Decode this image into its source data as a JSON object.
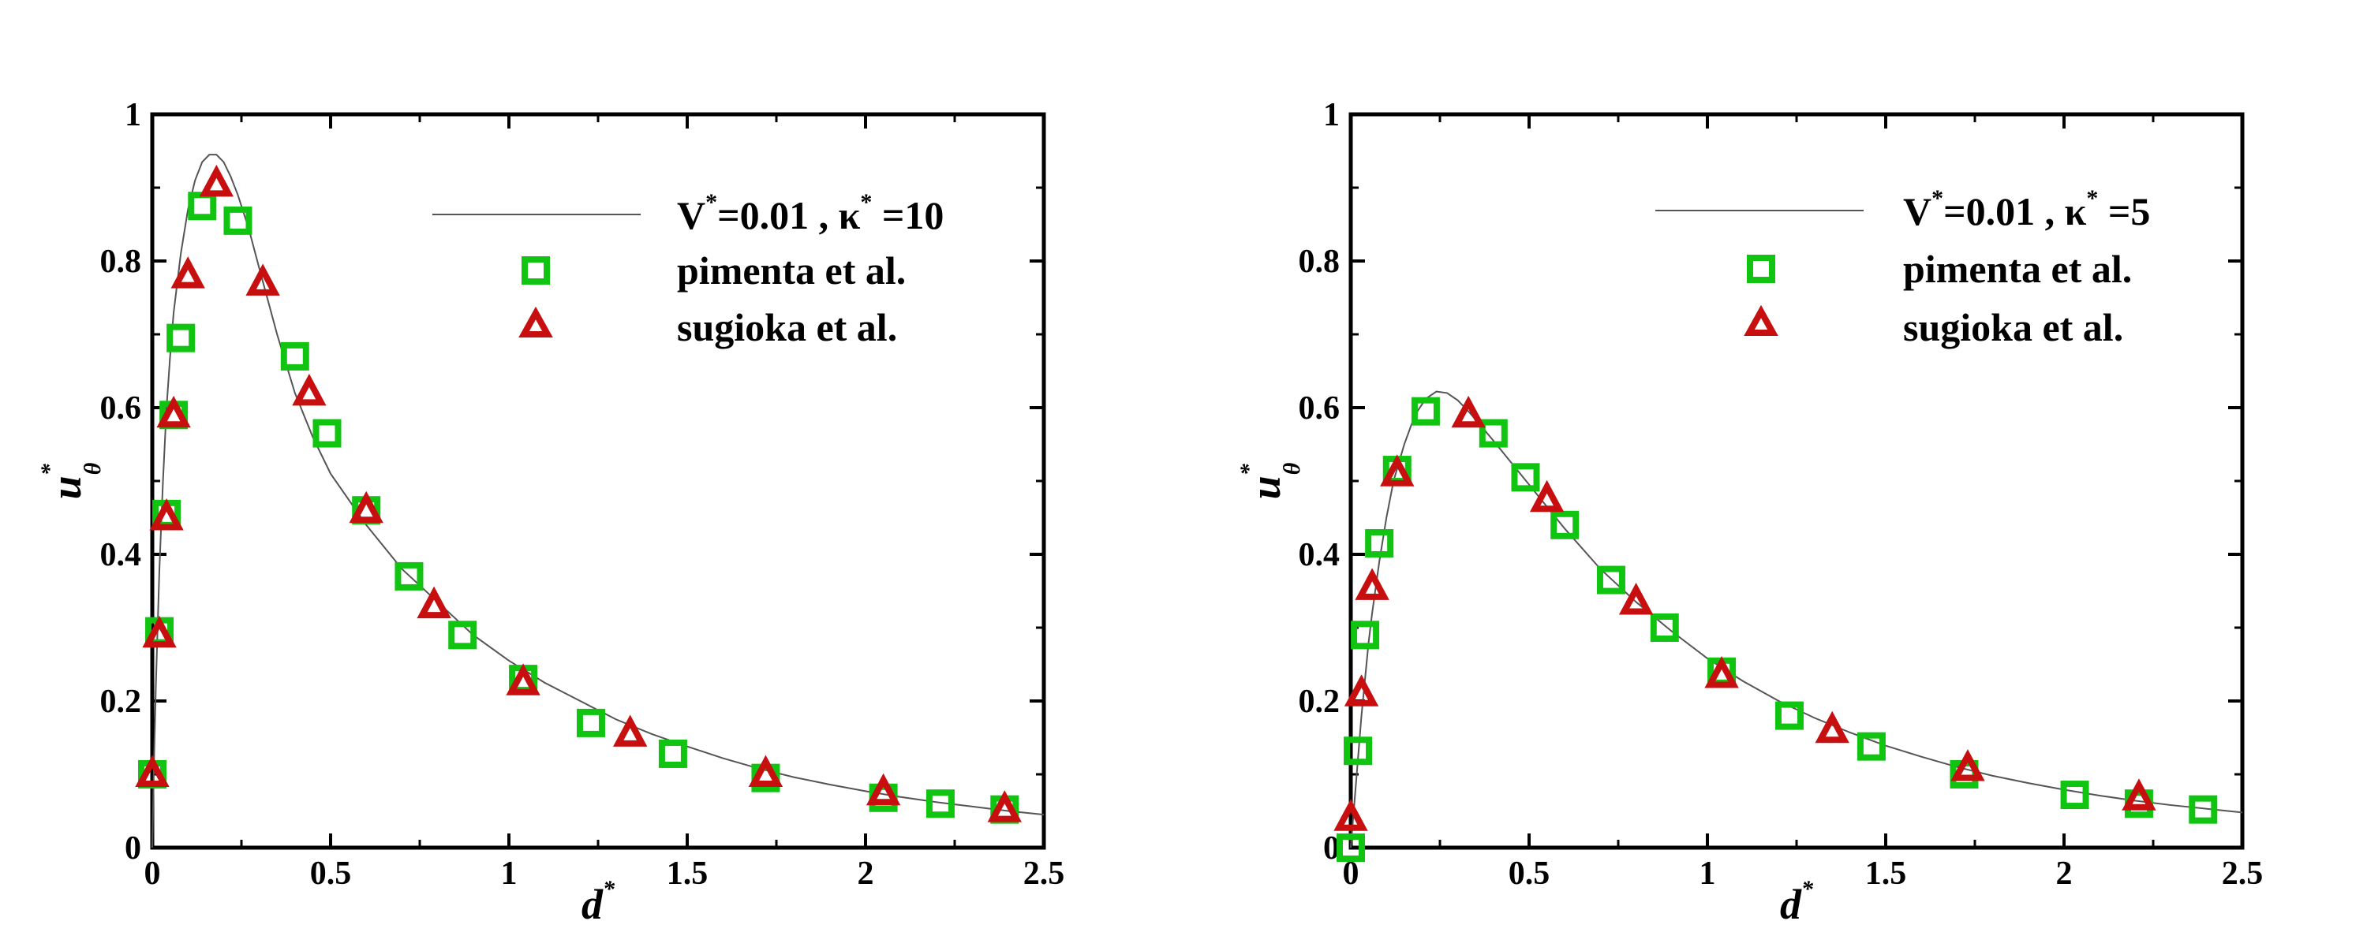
{
  "chart_data": [
    {
      "type": "scatter",
      "xlabel": "d",
      "xlabel_sup": "*",
      "ylabel": "u",
      "ylabel_sup": "*",
      "ylabel_sub": "θ",
      "xlim": [
        0,
        2.5
      ],
      "ylim": [
        0,
        1
      ],
      "xticks": [
        "0",
        "0.5",
        "1",
        "1.5",
        "2",
        "2.5"
      ],
      "yticks": [
        "0",
        "0.2",
        "0.4",
        "0.6",
        "0.8",
        "1"
      ],
      "grid": false,
      "legend_position": "top-right",
      "legend": {
        "line_label": {
          "v": "V",
          "sup1": "*",
          "mid": "=0.01 , κ",
          "sup2": "*",
          "end": " =10"
        },
        "squares_label": "pimenta et al.",
        "triangles_label": "sugioka et al."
      },
      "colors": {
        "squares": "#11c411",
        "triangles": "#c80f0f",
        "line": "#555555"
      },
      "series": [
        {
          "kind": "line",
          "x": [
            0,
            0.005,
            0.01,
            0.02,
            0.03,
            0.04,
            0.05,
            0.06,
            0.08,
            0.1,
            0.12,
            0.14,
            0.16,
            0.18,
            0.2,
            0.22,
            0.24,
            0.27,
            0.3,
            0.35,
            0.4,
            0.45,
            0.5,
            0.6,
            0.7,
            0.8,
            0.9,
            1.0,
            1.1,
            1.2,
            1.3,
            1.4,
            1.5,
            1.6,
            1.7,
            1.8,
            1.9,
            2.0,
            2.1,
            2.2,
            2.3,
            2.4,
            2.5
          ],
          "y": [
            0,
            0.12,
            0.22,
            0.38,
            0.5,
            0.6,
            0.67,
            0.73,
            0.81,
            0.87,
            0.91,
            0.935,
            0.945,
            0.945,
            0.935,
            0.915,
            0.89,
            0.845,
            0.79,
            0.7,
            0.62,
            0.56,
            0.51,
            0.44,
            0.38,
            0.335,
            0.29,
            0.255,
            0.225,
            0.2,
            0.175,
            0.155,
            0.138,
            0.122,
            0.108,
            0.096,
            0.086,
            0.077,
            0.069,
            0.062,
            0.056,
            0.05,
            0.045
          ]
        },
        {
          "kind": "squares",
          "x": [
            0,
            0.02,
            0.04,
            0.06,
            0.08,
            0.14,
            0.24,
            0.4,
            0.49,
            0.6,
            0.72,
            0.87,
            1.04,
            1.23,
            1.46,
            1.72,
            2.05,
            2.21,
            2.39
          ],
          "y": [
            0.1,
            0.295,
            0.455,
            0.59,
            0.695,
            0.875,
            0.855,
            0.67,
            0.565,
            0.46,
            0.37,
            0.29,
            0.23,
            0.17,
            0.128,
            0.095,
            0.068,
            0.06,
            0.052
          ]
        },
        {
          "kind": "triangles",
          "x": [
            0,
            0.02,
            0.04,
            0.06,
            0.1,
            0.18,
            0.31,
            0.44,
            0.6,
            0.79,
            1.04,
            1.34,
            1.72,
            2.05,
            2.39
          ],
          "y": [
            0.1,
            0.29,
            0.45,
            0.59,
            0.78,
            0.905,
            0.77,
            0.62,
            0.46,
            0.33,
            0.225,
            0.155,
            0.1,
            0.075,
            0.052
          ]
        }
      ]
    },
    {
      "type": "scatter",
      "xlabel": "d",
      "xlabel_sup": "*",
      "ylabel": "u",
      "ylabel_sup": "*",
      "ylabel_sub": "θ",
      "xlim": [
        0,
        2.5
      ],
      "ylim": [
        0,
        1
      ],
      "xticks": [
        "0",
        "0.5",
        "1",
        "1.5",
        "2",
        "2.5"
      ],
      "yticks": [
        "0",
        "0.2",
        "0.4",
        "0.6",
        "0.8",
        "1"
      ],
      "grid": false,
      "legend_position": "top-right",
      "legend": {
        "line_label": {
          "v": "V",
          "sup1": "*",
          "mid": "=0.01 , κ",
          "sup2": "*",
          "end": " =5"
        },
        "squares_label": "pimenta et al.",
        "triangles_label": "sugioka et al."
      },
      "colors": {
        "squares": "#11c411",
        "triangles": "#c80f0f",
        "line": "#555555"
      },
      "series": [
        {
          "kind": "line",
          "x": [
            0,
            0.01,
            0.02,
            0.03,
            0.04,
            0.05,
            0.06,
            0.08,
            0.1,
            0.12,
            0.15,
            0.18,
            0.21,
            0.24,
            0.27,
            0.3,
            0.33,
            0.36,
            0.4,
            0.45,
            0.5,
            0.6,
            0.7,
            0.8,
            0.9,
            1.0,
            1.1,
            1.2,
            1.3,
            1.4,
            1.5,
            1.6,
            1.7,
            1.8,
            1.9,
            2.0,
            2.1,
            2.2,
            2.3,
            2.4,
            2.5
          ],
          "y": [
            0,
            0.06,
            0.12,
            0.18,
            0.23,
            0.28,
            0.32,
            0.39,
            0.45,
            0.5,
            0.55,
            0.59,
            0.612,
            0.622,
            0.62,
            0.61,
            0.595,
            0.578,
            0.555,
            0.525,
            0.495,
            0.435,
            0.38,
            0.335,
            0.295,
            0.258,
            0.227,
            0.2,
            0.177,
            0.157,
            0.139,
            0.124,
            0.11,
            0.098,
            0.088,
            0.079,
            0.071,
            0.064,
            0.058,
            0.053,
            0.048
          ]
        },
        {
          "kind": "squares",
          "x": [
            0,
            0.02,
            0.04,
            0.08,
            0.13,
            0.21,
            0.4,
            0.49,
            0.6,
            0.73,
            0.88,
            1.04,
            1.23,
            1.46,
            1.72,
            2.03,
            2.21,
            2.39
          ],
          "y": [
            0.0,
            0.132,
            0.29,
            0.415,
            0.515,
            0.595,
            0.565,
            0.505,
            0.44,
            0.365,
            0.3,
            0.24,
            0.18,
            0.138,
            0.1,
            0.072,
            0.06,
            0.052
          ]
        },
        {
          "kind": "triangles",
          "x": [
            0,
            0.03,
            0.06,
            0.13,
            0.33,
            0.55,
            0.8,
            1.04,
            1.35,
            1.73,
            2.21
          ],
          "y": [
            0.04,
            0.21,
            0.355,
            0.51,
            0.59,
            0.475,
            0.335,
            0.235,
            0.16,
            0.108,
            0.068
          ]
        }
      ]
    }
  ]
}
